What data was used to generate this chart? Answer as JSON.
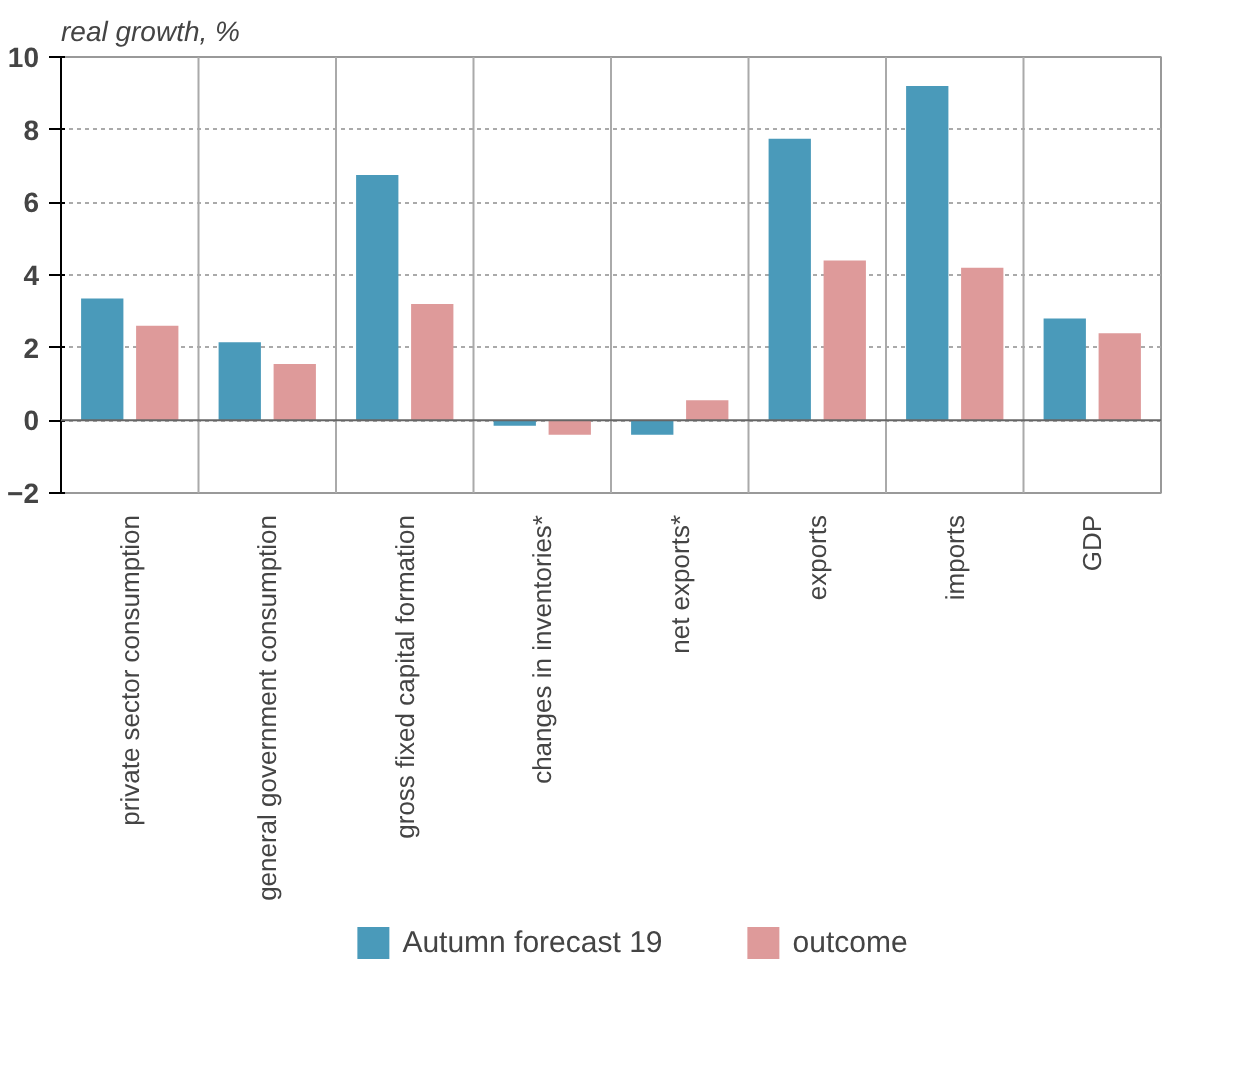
{
  "chart_data": {
    "type": "bar",
    "ylabel": "real growth, %",
    "categories": [
      "private sector consumption",
      "general government consumption",
      "gross fixed capital formation",
      "changes in inventories*",
      "net exports*",
      "exports",
      "imports",
      "GDP"
    ],
    "series": [
      {
        "name": "Autumn forecast 19",
        "color": "#4a9aba",
        "values": [
          3.35,
          2.15,
          6.75,
          -0.15,
          -0.4,
          7.75,
          9.2,
          2.8
        ]
      },
      {
        "name": "outcome",
        "color": "#de9a9a",
        "values": [
          2.6,
          1.55,
          3.2,
          -0.4,
          0.55,
          4.4,
          4.2,
          2.4
        ]
      }
    ],
    "ylim": [
      -2,
      10
    ],
    "yticks": [
      -2,
      0,
      2,
      4,
      6,
      8,
      10
    ],
    "grid": true,
    "legend": "bottom"
  }
}
